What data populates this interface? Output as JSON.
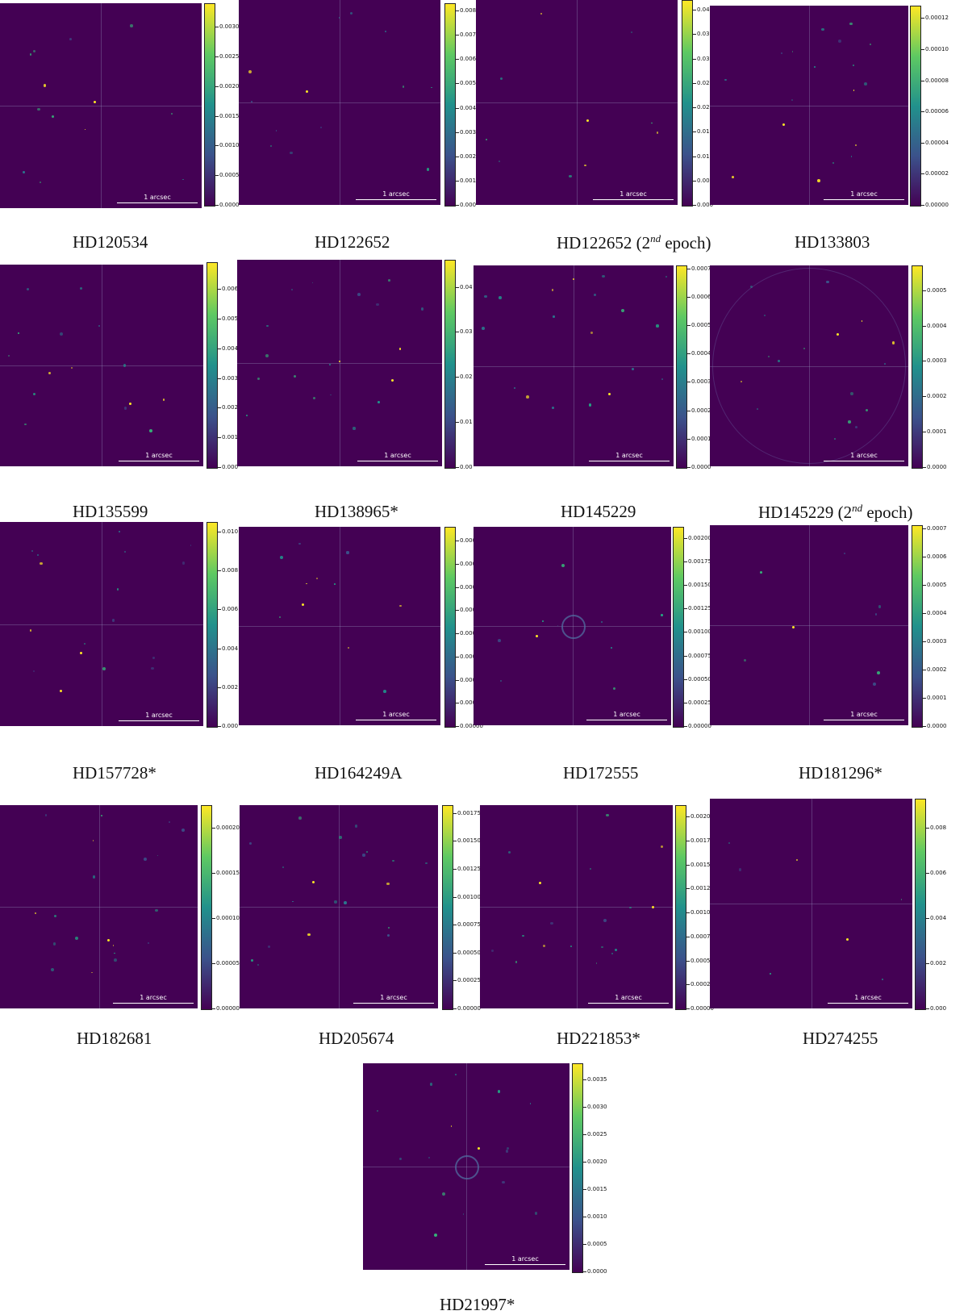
{
  "figure": {
    "scale_label": "1 arcsec",
    "colormap": "viridis",
    "background_color": "#440154",
    "panels": [
      {
        "name": "HD120534",
        "epoch_sup": "",
        "epoch_suffix": "",
        "ticks": [
          "0.0000",
          "0.0005",
          "0.0010",
          "0.0015",
          "0.0020",
          "0.0025",
          "0.0030"
        ],
        "max": 0.0034
      },
      {
        "name": "HD122652",
        "epoch_sup": "",
        "epoch_suffix": "",
        "ticks": [
          "0.000",
          "0.001",
          "0.002",
          "0.003",
          "0.004",
          "0.005",
          "0.006",
          "0.007",
          "0.008"
        ],
        "max": 0.0083
      },
      {
        "name": "HD122652 (2",
        "epoch_sup": "nd",
        "epoch_suffix": " epoch)",
        "ticks": [
          "0.000",
          "0.005",
          "0.010",
          "0.015",
          "0.020",
          "0.025",
          "0.030",
          "0.035",
          "0.040"
        ],
        "max": 0.042
      },
      {
        "name": "HD133803",
        "epoch_sup": "",
        "epoch_suffix": "",
        "ticks": [
          "0.00000",
          "0.00002",
          "0.00004",
          "0.00006",
          "0.00008",
          "0.00010",
          "0.00012"
        ],
        "max": 0.000128
      },
      {
        "name": "HD135599",
        "epoch_sup": "",
        "epoch_suffix": "",
        "ticks": [
          "0.000",
          "0.001",
          "0.002",
          "0.003",
          "0.004",
          "0.005",
          "0.006"
        ],
        "max": 0.0069
      },
      {
        "name": "HD138965*",
        "epoch_sup": "",
        "epoch_suffix": "",
        "ticks": [
          "0.00",
          "0.01",
          "0.02",
          "0.03",
          "0.04"
        ],
        "max": 0.046
      },
      {
        "name": "HD145229",
        "epoch_sup": "",
        "epoch_suffix": "",
        "ticks": [
          "0.0000",
          "0.0001",
          "0.0002",
          "0.0003",
          "0.0004",
          "0.0005",
          "0.0006",
          "0.0007"
        ],
        "max": 0.00071
      },
      {
        "name": "HD145229 (2",
        "epoch_sup": "nd",
        "epoch_suffix": " epoch)",
        "ticks": [
          "0.0000",
          "0.0001",
          "0.0002",
          "0.0003",
          "0.0004",
          "0.0005"
        ],
        "max": 0.00057
      },
      {
        "name": "HD157728*",
        "epoch_sup": "",
        "epoch_suffix": "",
        "ticks": [
          "0.000",
          "0.002",
          "0.004",
          "0.006",
          "0.008",
          "0.010"
        ],
        "max": 0.0105
      },
      {
        "name": "HD164249A",
        "epoch_sup": "",
        "epoch_suffix": "",
        "ticks": [
          "0.00000",
          "0.00001",
          "0.00002",
          "0.00003",
          "0.00004",
          "0.00005",
          "0.00006",
          "0.00007",
          "0.00008"
        ],
        "max": 8.6e-05
      },
      {
        "name": "HD172555",
        "epoch_sup": "",
        "epoch_suffix": "",
        "ticks": [
          "0.00000",
          "0.00025",
          "0.00050",
          "0.00075",
          "0.00100",
          "0.00125",
          "0.00150",
          "0.00175",
          "0.00200"
        ],
        "max": 0.00212
      },
      {
        "name": "HD181296*",
        "epoch_sup": "",
        "epoch_suffix": "",
        "ticks": [
          "0.0000",
          "0.0001",
          "0.0002",
          "0.0003",
          "0.0004",
          "0.0005",
          "0.0006",
          "0.0007"
        ],
        "max": 0.00071
      },
      {
        "name": "HD182681",
        "epoch_sup": "",
        "epoch_suffix": "",
        "ticks": [
          "0.00000",
          "0.00005",
          "0.00010",
          "0.00015",
          "0.00020"
        ],
        "max": 0.000225
      },
      {
        "name": "HD205674",
        "epoch_sup": "",
        "epoch_suffix": "",
        "ticks": [
          "0.00000",
          "0.00025",
          "0.00050",
          "0.00075",
          "0.00100",
          "0.00125",
          "0.00150",
          "0.00175"
        ],
        "max": 0.00182
      },
      {
        "name": "HD221853*",
        "epoch_sup": "",
        "epoch_suffix": "",
        "ticks": [
          "0.00000",
          "0.00025",
          "0.00050",
          "0.00075",
          "0.00100",
          "0.00125",
          "0.00150",
          "0.00175",
          "0.00200"
        ],
        "max": 0.00212
      },
      {
        "name": "HD274255",
        "epoch_sup": "",
        "epoch_suffix": "",
        "ticks": [
          "0.000",
          "0.002",
          "0.004",
          "0.006",
          "0.008"
        ],
        "max": 0.0093
      },
      {
        "name": "HD21997*",
        "epoch_sup": "",
        "epoch_suffix": "",
        "ticks": [
          "0.0000",
          "0.0005",
          "0.0010",
          "0.0015",
          "0.0020",
          "0.0025",
          "0.0030",
          "0.0035"
        ],
        "max": 0.0038
      }
    ]
  }
}
